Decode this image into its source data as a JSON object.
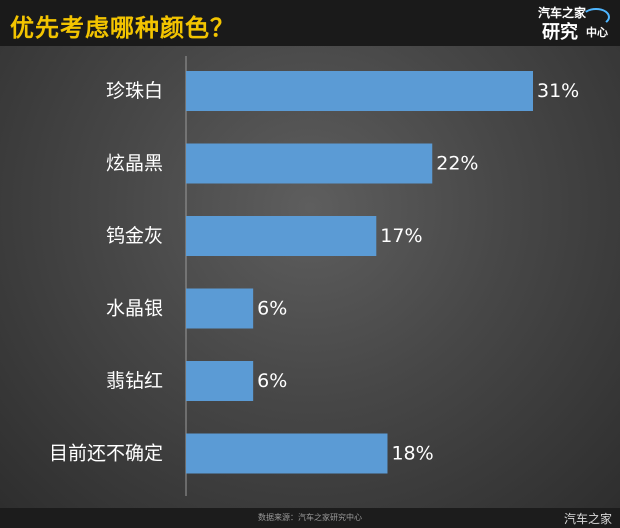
{
  "header": {
    "title": "优先考虑哪种颜色？",
    "logo_line1": "汽车之家",
    "logo_line2": "研究",
    "logo_line3": "中心"
  },
  "chart_data": {
    "type": "bar",
    "orientation": "horizontal",
    "categories": [
      "珍珠白",
      "炫晶黑",
      "钨金灰",
      "水晶银",
      "翡钻红",
      "目前还不确定"
    ],
    "values": [
      31,
      22,
      17,
      6,
      6,
      18
    ],
    "value_labels": [
      "31%",
      "22%",
      "17%",
      "6%",
      "6%",
      "18%"
    ],
    "xlim": [
      0,
      31
    ],
    "bar_color": "#5b9bd5",
    "grid": false
  },
  "footer": {
    "source": "数据来源：汽车之家研究中心",
    "watermark": "汽车之家"
  }
}
